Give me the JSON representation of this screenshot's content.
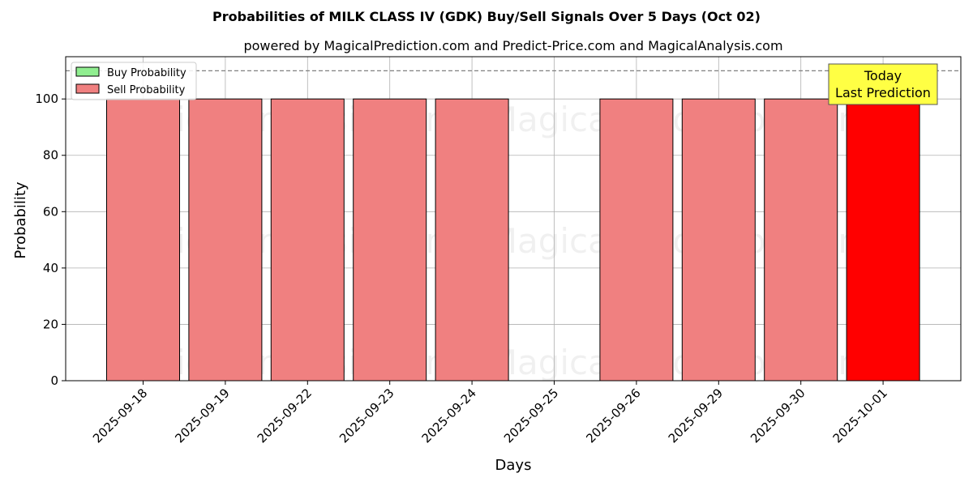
{
  "chart_data": {
    "type": "bar",
    "title": "Probabilities of MILK CLASS IV (GDK) Buy/Sell Signals Over 5 Days (Oct 02)",
    "subtitle": "powered by MagicalPrediction.com and Predict-Price.com and MagicalAnalysis.com",
    "xlabel": "Days",
    "ylabel": "Probability",
    "ylim": [
      0,
      115
    ],
    "yticks": [
      0,
      20,
      40,
      60,
      80,
      100
    ],
    "threshold": 110,
    "grid": true,
    "legend_position": "top-left",
    "categories": [
      "2025-09-18",
      "2025-09-19",
      "2025-09-22",
      "2025-09-23",
      "2025-09-24",
      "2025-09-25",
      "2025-09-26",
      "2025-09-29",
      "2025-09-30",
      "2025-10-01"
    ],
    "series": [
      {
        "name": "Buy Probability",
        "color": "#90ee90",
        "values": [
          0,
          0,
          0,
          0,
          0,
          0,
          0,
          0,
          0,
          0
        ]
      },
      {
        "name": "Sell Probability",
        "color": "#f08080",
        "values": [
          100,
          100,
          100,
          100,
          100,
          0,
          100,
          100,
          100,
          100
        ]
      }
    ],
    "highlight": {
      "index": 9,
      "color": "#ff0000"
    },
    "annotation": {
      "lines": [
        "Today",
        "Last Prediction"
      ],
      "background": "#ffff44"
    },
    "watermarks": [
      "MagicalAnalysis.com",
      "MagicalPrediction.com"
    ]
  }
}
